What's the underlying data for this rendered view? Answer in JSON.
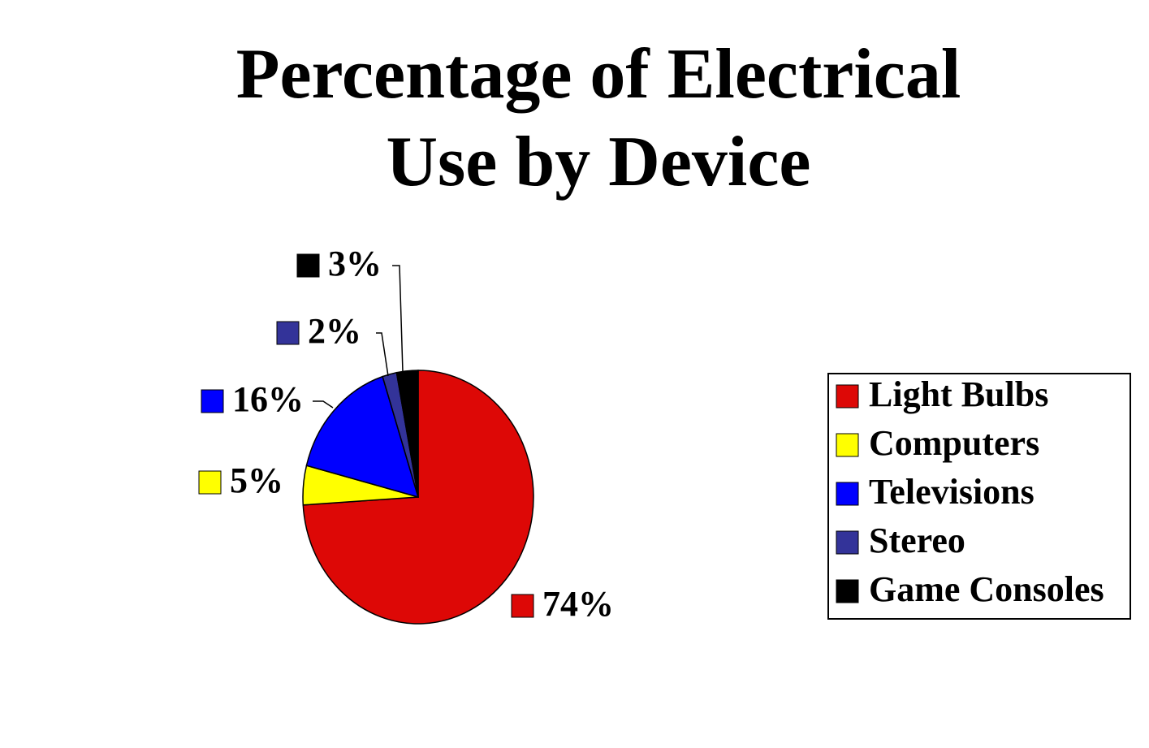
{
  "chart_data": {
    "type": "pie",
    "title": "Percentage of Electrical",
    "subtitle": "Use by Device",
    "categories": [
      "Light Bulbs",
      "Computers",
      "Televisions",
      "Stereo",
      "Game Consoles"
    ],
    "values": [
      74,
      5,
      16,
      2,
      3
    ],
    "value_labels": [
      "74%",
      "5%",
      "16%",
      "2%",
      "3%"
    ],
    "colors": [
      "#dd0806",
      "#ffff00",
      "#0000ff",
      "#333399",
      "#000000"
    ],
    "legend": "right"
  }
}
